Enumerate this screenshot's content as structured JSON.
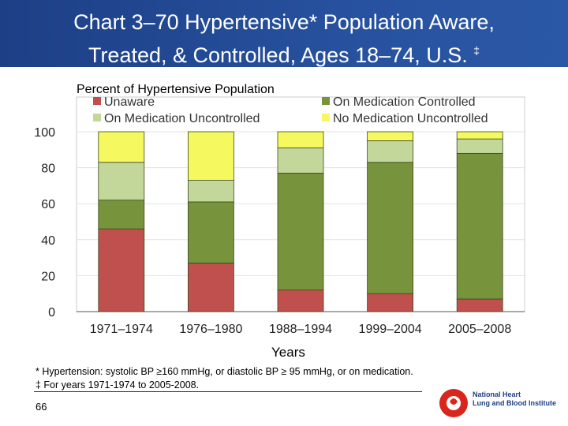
{
  "title": {
    "line1": "Chart 3–70 Hypertensive* Population Aware,",
    "line2": "Treated, & Controlled, Ages 18–74, U.S.",
    "line2_mark": "‡"
  },
  "footnotes": [
    "* Hypertension: systolic BP ≥160 mmHg, or diastolic BP ≥ 95 mmHg, or on medication.",
    "‡  For years 1971-1974 to 2005-2008."
  ],
  "page_number": "66",
  "logo": {
    "line1": "National Heart",
    "line2": "Lung and Blood Institute"
  },
  "chart_data": {
    "type": "bar",
    "stacked": true,
    "ylabel": "Percent of Hypertensive Population",
    "xlabel": "Years",
    "ylim": [
      0,
      100
    ],
    "yticks": [
      0,
      20,
      40,
      60,
      80,
      100
    ],
    "grid": true,
    "legend_position": "top",
    "categories": [
      "1971–1974",
      "1976–1980",
      "1988–1994",
      "1999–2004",
      "2005–2008"
    ],
    "series": [
      {
        "name": "Unaware",
        "color": "#c0504d",
        "values": [
          46,
          27,
          12,
          10,
          7
        ]
      },
      {
        "name": "On Medication Controlled",
        "color": "#77933c",
        "values": [
          16,
          34,
          65,
          73,
          81
        ]
      },
      {
        "name": "On Medication Uncontrolled",
        "color": "#c4d79b",
        "values": [
          21,
          12,
          14,
          12,
          8
        ]
      },
      {
        "name": "No Medication Uncontrolled",
        "color": "#f5f85f",
        "values": [
          17,
          27,
          9,
          5,
          4
        ]
      }
    ]
  }
}
